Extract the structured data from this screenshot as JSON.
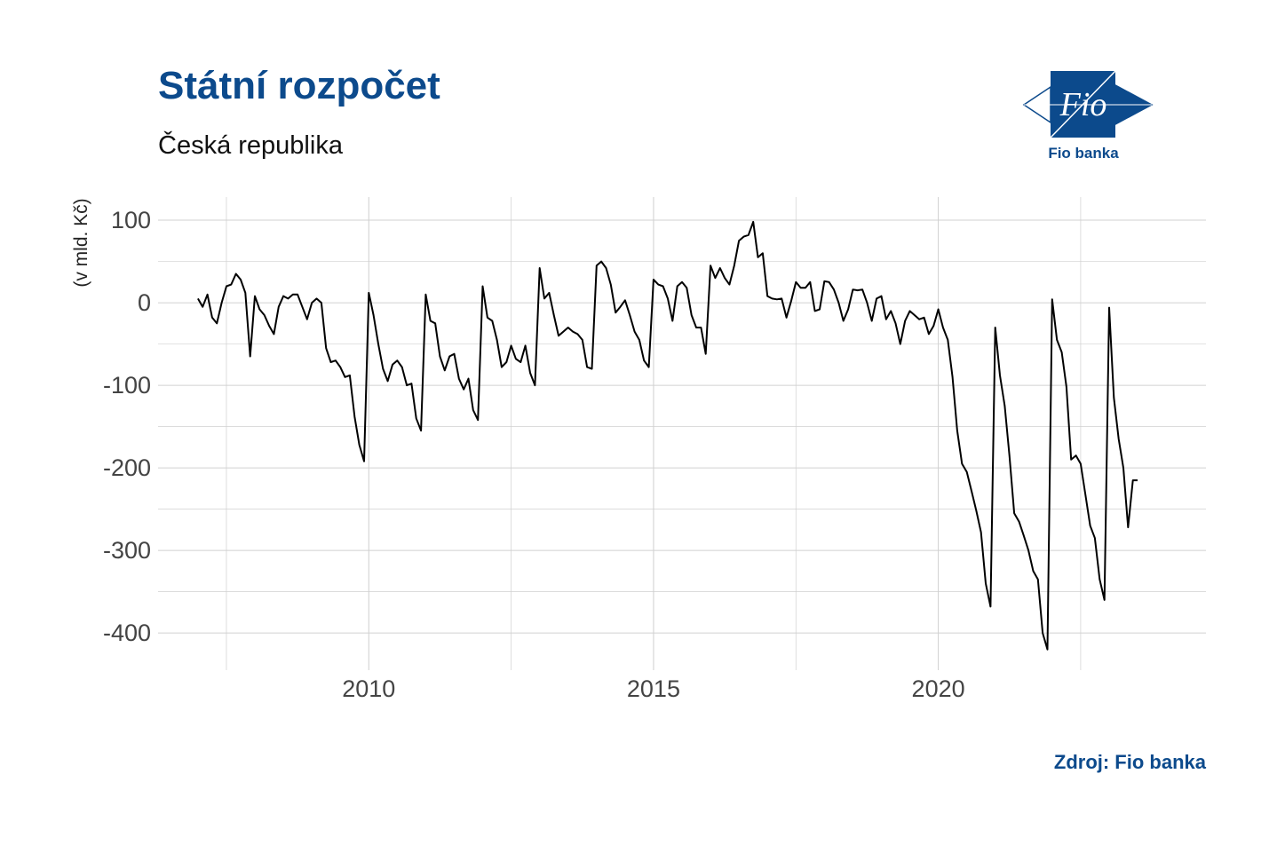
{
  "header": {
    "title": "Státní rozpočet",
    "subtitle": "Česká republika"
  },
  "logo": {
    "text": "Fio",
    "caption": "Fio banka",
    "color": "#0c4a8c"
  },
  "footer": {
    "source": "Zdroj: Fio banka"
  },
  "colors": {
    "accent": "#0c4a8c",
    "line": "#000000",
    "grid": "#d0d0d0"
  },
  "chart_data": {
    "type": "line",
    "title": "Státní rozpočet",
    "subtitle": "Česká republika",
    "xlabel": "",
    "ylabel": "(v mld. Kč)",
    "xlim": [
      2006.3,
      2024.7
    ],
    "ylim": [
      -445,
      128
    ],
    "x_ticks": [
      2010,
      2015,
      2020
    ],
    "y_ticks": [
      100,
      0,
      -100,
      -200,
      -300,
      -400
    ],
    "grid": true,
    "legend": "none",
    "series": [
      {
        "x": [
          2007.0,
          2007.083,
          2007.167,
          2007.25,
          2007.333,
          2007.417,
          2007.5,
          2007.583,
          2007.667,
          2007.75,
          2007.833,
          2007.917,
          2008.0,
          2008.083,
          2008.167,
          2008.25,
          2008.333,
          2008.417,
          2008.5,
          2008.583,
          2008.667,
          2008.75,
          2008.833,
          2008.917,
          2009.0,
          2009.083,
          2009.167,
          2009.25,
          2009.333,
          2009.417,
          2009.5,
          2009.583,
          2009.667,
          2009.75,
          2009.833,
          2009.917,
          2010.0,
          2010.083,
          2010.167,
          2010.25,
          2010.333,
          2010.417,
          2010.5,
          2010.583,
          2010.667,
          2010.75,
          2010.833,
          2010.917,
          2011.0,
          2011.083,
          2011.167,
          2011.25,
          2011.333,
          2011.417,
          2011.5,
          2011.583,
          2011.667,
          2011.75,
          2011.833,
          2011.917,
          2012.0,
          2012.083,
          2012.167,
          2012.25,
          2012.333,
          2012.417,
          2012.5,
          2012.583,
          2012.667,
          2012.75,
          2012.833,
          2012.917,
          2013.0,
          2013.083,
          2013.167,
          2013.25,
          2013.333,
          2013.417,
          2013.5,
          2013.583,
          2013.667,
          2013.75,
          2013.833,
          2013.917,
          2014.0,
          2014.083,
          2014.167,
          2014.25,
          2014.333,
          2014.417,
          2014.5,
          2014.583,
          2014.667,
          2014.75,
          2014.833,
          2014.917,
          2015.0,
          2015.083,
          2015.167,
          2015.25,
          2015.333,
          2015.417,
          2015.5,
          2015.583,
          2015.667,
          2015.75,
          2015.833,
          2015.917,
          2016.0,
          2016.083,
          2016.167,
          2016.25,
          2016.333,
          2016.417,
          2016.5,
          2016.583,
          2016.667,
          2016.75,
          2016.833,
          2016.917,
          2017.0,
          2017.083,
          2017.167,
          2017.25,
          2017.333,
          2017.417,
          2017.5,
          2017.583,
          2017.667,
          2017.75,
          2017.833,
          2017.917,
          2018.0,
          2018.083,
          2018.167,
          2018.25,
          2018.333,
          2018.417,
          2018.5,
          2018.583,
          2018.667,
          2018.75,
          2018.833,
          2018.917,
          2019.0,
          2019.083,
          2019.167,
          2019.25,
          2019.333,
          2019.417,
          2019.5,
          2019.583,
          2019.667,
          2019.75,
          2019.833,
          2019.917,
          2020.0,
          2020.083,
          2020.167,
          2020.25,
          2020.333,
          2020.417,
          2020.5,
          2020.583,
          2020.667,
          2020.75,
          2020.833,
          2020.917,
          2021.0,
          2021.083,
          2021.167,
          2021.25,
          2021.333,
          2021.417,
          2021.5,
          2021.583,
          2021.667,
          2021.75,
          2021.833,
          2021.917,
          2022.0,
          2022.083,
          2022.167,
          2022.25,
          2022.333,
          2022.417,
          2022.5,
          2022.583,
          2022.667,
          2022.75,
          2022.833,
          2022.917,
          2023.0,
          2023.083,
          2023.167,
          2023.25,
          2023.333,
          2023.417,
          2023.5
        ],
        "y": [
          5,
          -5,
          10,
          -18,
          -25,
          0,
          20,
          22,
          35,
          28,
          12,
          -65,
          8,
          -8,
          -15,
          -28,
          -38,
          -5,
          8,
          5,
          10,
          10,
          -5,
          -20,
          0,
          5,
          0,
          -55,
          -72,
          -70,
          -78,
          -90,
          -88,
          -138,
          -172,
          -192,
          12,
          -15,
          -50,
          -80,
          -95,
          -75,
          -70,
          -78,
          -100,
          -98,
          -140,
          -155,
          10,
          -22,
          -25,
          -65,
          -82,
          -65,
          -62,
          -92,
          -105,
          -92,
          -130,
          -142,
          20,
          -18,
          -22,
          -45,
          -78,
          -72,
          -52,
          -68,
          -72,
          -52,
          -85,
          -100,
          42,
          5,
          12,
          -15,
          -40,
          -35,
          -30,
          -35,
          -38,
          -45,
          -78,
          -80,
          45,
          50,
          42,
          22,
          -12,
          -5,
          3,
          -15,
          -35,
          -45,
          -70,
          -78,
          28,
          22,
          20,
          5,
          -22,
          20,
          25,
          18,
          -15,
          -30,
          -30,
          -62,
          45,
          30,
          42,
          30,
          22,
          45,
          75,
          80,
          82,
          98,
          55,
          60,
          8,
          5,
          4,
          5,
          -18,
          2,
          25,
          18,
          18,
          25,
          -10,
          -8,
          26,
          25,
          16,
          0,
          -22,
          -8,
          16,
          15,
          16,
          0,
          -22,
          5,
          8,
          -20,
          -10,
          -25,
          -50,
          -22,
          -10,
          -15,
          -20,
          -18,
          -38,
          -28,
          -8,
          -30,
          -45,
          -90,
          -155,
          -195,
          -205,
          -228,
          -252,
          -278,
          -340,
          -368,
          -30,
          -88,
          -125,
          -185,
          -255,
          -265,
          -282,
          -300,
          -325,
          -335,
          -400,
          -420,
          4,
          -45,
          -60,
          -102,
          -190,
          -185,
          -195,
          -232,
          -270,
          -285,
          -335,
          -360,
          -6,
          -115,
          -165,
          -200,
          -272,
          -215,
          -215
        ]
      }
    ]
  }
}
